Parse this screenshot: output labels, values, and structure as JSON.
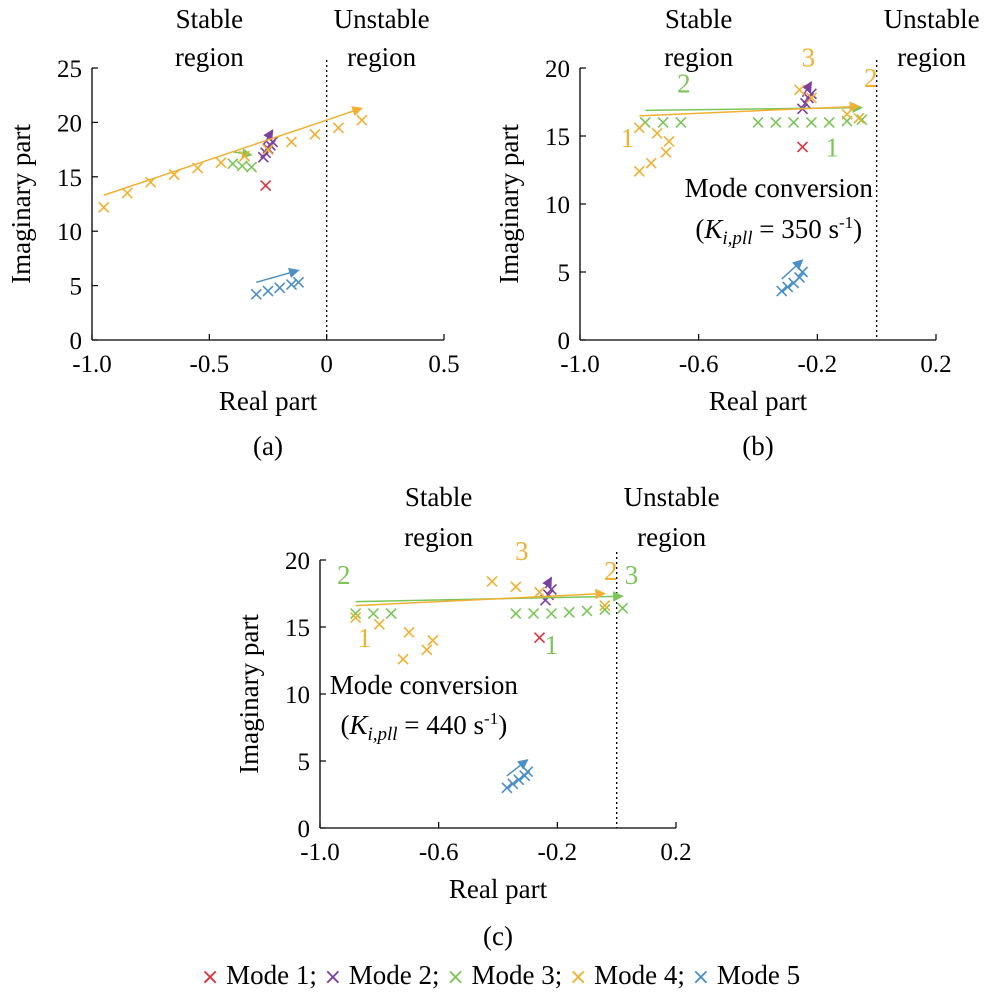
{
  "colors": {
    "mode1": "#e0323c",
    "mode2": "#7b3fa0",
    "mode3": "#7cc55a",
    "mode4": "#f0b032",
    "mode5": "#4a8fc7"
  },
  "legend": {
    "marker": "×",
    "items": [
      "Mode 1;",
      "Mode 2;",
      "Mode 3;",
      "Mode 4;",
      "Mode 5"
    ]
  },
  "chart_data": [
    {
      "id": "a",
      "type": "scatter",
      "caption": "(a)",
      "xlabel": "Real part",
      "ylabel": "Imaginary part",
      "xlim": [
        -1.0,
        0.5
      ],
      "ylim": [
        0,
        25
      ],
      "xticks": [
        "-1.0",
        "-0.5",
        "0",
        "0.5"
      ],
      "yticks": [
        "0",
        "5",
        "10",
        "15",
        "20",
        "25"
      ],
      "boundary_x": 0,
      "stable_label": [
        "Stable",
        "region"
      ],
      "unstable_label": [
        "Unstable",
        "region"
      ],
      "annotations": [],
      "series": [
        {
          "mode": "mode1",
          "points": [
            [
              -0.26,
              14.2
            ]
          ]
        },
        {
          "mode": "mode2",
          "points": [
            [
              -0.27,
              16.8
            ],
            [
              -0.26,
              17.2
            ],
            [
              -0.25,
              17.6
            ],
            [
              -0.24,
              17.9
            ],
            [
              -0.23,
              18.2
            ]
          ]
        },
        {
          "mode": "mode3",
          "points": [
            [
              -0.4,
              16.2
            ],
            [
              -0.36,
              16.0
            ],
            [
              -0.32,
              15.9
            ]
          ]
        },
        {
          "mode": "mode4",
          "points": [
            [
              -0.95,
              12.2
            ],
            [
              -0.85,
              13.5
            ],
            [
              -0.75,
              14.5
            ],
            [
              -0.65,
              15.2
            ],
            [
              -0.55,
              15.8
            ],
            [
              -0.45,
              16.3
            ],
            [
              -0.35,
              16.9
            ],
            [
              -0.25,
              17.5
            ],
            [
              -0.15,
              18.2
            ],
            [
              -0.05,
              18.9
            ],
            [
              0.05,
              19.5
            ],
            [
              0.15,
              20.2
            ]
          ]
        },
        {
          "mode": "mode5",
          "points": [
            [
              -0.3,
              4.2
            ],
            [
              -0.25,
              4.5
            ],
            [
              -0.2,
              4.8
            ],
            [
              -0.15,
              5.1
            ],
            [
              -0.12,
              5.3
            ]
          ]
        }
      ]
    },
    {
      "id": "b",
      "type": "scatter",
      "caption": "(b)",
      "xlabel": "Real part",
      "ylabel": "Imaginary part",
      "xlim": [
        -1.0,
        0.2
      ],
      "ylim": [
        0,
        20
      ],
      "xticks": [
        "-1.0",
        "-0.6",
        "-0.2",
        "0.2"
      ],
      "yticks": [
        "0",
        "5",
        "10",
        "15",
        "20"
      ],
      "boundary_x": 0,
      "stable_label": [
        "Stable",
        "region"
      ],
      "unstable_label": [
        "Unstable",
        "region"
      ],
      "annotations": [
        {
          "text": "Mode conversion",
          "x": -0.33,
          "y": 10.5
        },
        {
          "text_k": "K",
          "text_sub": "i,pll",
          "text_rest": " = 350 s",
          "text_sup": "-1",
          "x": -0.33,
          "y": 7.5
        }
      ],
      "number_labels": [
        {
          "text": "1",
          "mode": "mode4",
          "x": -0.84,
          "y": 14.2
        },
        {
          "text": "2",
          "mode": "mode3",
          "x": -0.65,
          "y": 18.2
        },
        {
          "text": "1",
          "mode": "mode3",
          "x": -0.15,
          "y": 13.5
        },
        {
          "text": "2",
          "mode": "mode4",
          "x": -0.02,
          "y": 18.6
        },
        {
          "text": "3",
          "mode": "mode4",
          "x": -0.23,
          "y": 20.1
        }
      ],
      "series": [
        {
          "mode": "mode1",
          "points": [
            [
              -0.25,
              14.2
            ]
          ]
        },
        {
          "mode": "mode2",
          "points": [
            [
              -0.25,
              17.0
            ],
            [
              -0.24,
              17.4
            ],
            [
              -0.23,
              17.8
            ],
            [
              -0.22,
              18.1
            ]
          ]
        },
        {
          "mode": "mode3",
          "points": [
            [
              -0.78,
              16.0
            ],
            [
              -0.72,
              16.0
            ],
            [
              -0.66,
              16.0
            ],
            [
              -0.4,
              16.0
            ],
            [
              -0.34,
              16.0
            ],
            [
              -0.28,
              16.0
            ],
            [
              -0.22,
              16.0
            ],
            [
              -0.16,
              16.0
            ],
            [
              -0.1,
              16.1
            ],
            [
              -0.05,
              16.2
            ]
          ]
        },
        {
          "mode": "mode4",
          "points": [
            [
              -0.8,
              15.6
            ],
            [
              -0.74,
              15.2
            ],
            [
              -0.7,
              14.6
            ],
            [
              -0.71,
              13.8
            ],
            [
              -0.76,
              13.0
            ],
            [
              -0.8,
              12.4
            ],
            [
              -0.26,
              18.4
            ],
            [
              -0.22,
              17.8
            ],
            [
              -0.1,
              16.6
            ],
            [
              -0.06,
              16.3
            ]
          ]
        },
        {
          "mode": "mode5",
          "points": [
            [
              -0.32,
              3.6
            ],
            [
              -0.3,
              3.9
            ],
            [
              -0.28,
              4.2
            ],
            [
              -0.26,
              4.6
            ],
            [
              -0.25,
              5.0
            ]
          ]
        }
      ]
    },
    {
      "id": "c",
      "type": "scatter",
      "caption": "(c)",
      "xlabel": "Real part",
      "ylabel": "Imaginary part",
      "xlim": [
        -1.0,
        0.2
      ],
      "ylim": [
        0,
        20
      ],
      "xticks": [
        "-1.0",
        "-0.6",
        "-0.2",
        "0.2"
      ],
      "yticks": [
        "0",
        "5",
        "10",
        "15",
        "20"
      ],
      "boundary_x": 0,
      "stable_label": [
        "Stable",
        "region"
      ],
      "unstable_label": [
        "Unstable",
        "region"
      ],
      "annotations": [
        {
          "text": "Mode conversion",
          "x": -0.65,
          "y": 10.0
        },
        {
          "text_k": "K",
          "text_sub": "i,pll",
          "text_rest": " = 440 s",
          "text_sup": "-1",
          "x": -0.65,
          "y": 7.0
        }
      ],
      "number_labels": [
        {
          "text": "2",
          "mode": "mode3",
          "x": -0.92,
          "y": 18.2
        },
        {
          "text": "1",
          "mode": "mode4",
          "x": -0.85,
          "y": 13.5
        },
        {
          "text": "3",
          "mode": "mode4",
          "x": -0.32,
          "y": 20.0
        },
        {
          "text": "1",
          "mode": "mode3",
          "x": -0.22,
          "y": 13.0
        },
        {
          "text": "2",
          "mode": "mode4",
          "x": -0.02,
          "y": 18.5
        },
        {
          "text": "3",
          "mode": "mode3",
          "x": 0.05,
          "y": 18.2
        }
      ],
      "series": [
        {
          "mode": "mode1",
          "points": [
            [
              -0.26,
              14.2
            ]
          ]
        },
        {
          "mode": "mode2",
          "points": [
            [
              -0.24,
              17.0
            ],
            [
              -0.23,
              17.4
            ],
            [
              -0.22,
              17.8
            ]
          ]
        },
        {
          "mode": "mode3",
          "points": [
            [
              -0.88,
              16.0
            ],
            [
              -0.82,
              16.0
            ],
            [
              -0.76,
              16.0
            ],
            [
              -0.34,
              16.0
            ],
            [
              -0.28,
              16.0
            ],
            [
              -0.22,
              16.0
            ],
            [
              -0.16,
              16.1
            ],
            [
              -0.1,
              16.2
            ],
            [
              -0.04,
              16.3
            ],
            [
              0.02,
              16.4
            ]
          ]
        },
        {
          "mode": "mode4",
          "points": [
            [
              -0.88,
              15.7
            ],
            [
              -0.8,
              15.2
            ],
            [
              -0.7,
              14.6
            ],
            [
              -0.62,
              14.0
            ],
            [
              -0.64,
              13.3
            ],
            [
              -0.72,
              12.6
            ],
            [
              -0.42,
              18.4
            ],
            [
              -0.34,
              18.0
            ],
            [
              -0.26,
              17.6
            ],
            [
              -0.04,
              16.6
            ]
          ]
        },
        {
          "mode": "mode5",
          "points": [
            [
              -0.37,
              3.0
            ],
            [
              -0.35,
              3.3
            ],
            [
              -0.33,
              3.6
            ],
            [
              -0.31,
              3.9
            ],
            [
              -0.3,
              4.2
            ]
          ]
        }
      ]
    }
  ]
}
